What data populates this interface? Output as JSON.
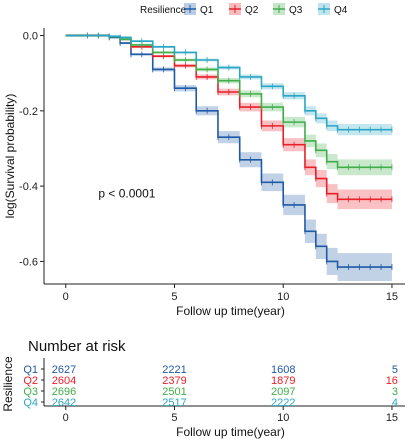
{
  "chart_data": {
    "type": "line",
    "legend": {
      "title": "Resilience",
      "position": "top",
      "items": [
        "Q1",
        "Q2",
        "Q3",
        "Q4"
      ]
    },
    "xlabel": "Follow up time(year)",
    "ylabel": "log(Survival probability)",
    "xlim": [
      -1,
      15.6
    ],
    "ylim": [
      -0.66,
      0.02
    ],
    "xticks": [
      0,
      5,
      10,
      15
    ],
    "yticks": [
      0.0,
      -0.2,
      -0.4,
      -0.6
    ],
    "ytick_labels": [
      "0.0",
      "-0.2",
      "-0.4",
      "-0.6"
    ],
    "annotation": "p < 0.0001",
    "annotation_at": [
      1.5,
      -0.43
    ],
    "grid": false,
    "series": [
      {
        "name": "Q1",
        "color": "#1f5aa6",
        "x": [
          0,
          1,
          2,
          2.5,
          3,
          4,
          5,
          6,
          7,
          8,
          9,
          10,
          11,
          11.5,
          12,
          12.5,
          15
        ],
        "y": [
          0,
          0,
          -0.005,
          -0.02,
          -0.05,
          -0.09,
          -0.14,
          -0.2,
          -0.27,
          -0.33,
          -0.39,
          -0.45,
          -0.52,
          -0.56,
          -0.6,
          -0.615,
          -0.615
        ]
      },
      {
        "name": "Q2",
        "color": "#e8202a",
        "x": [
          0,
          1,
          2,
          2.5,
          3,
          4,
          5,
          6,
          7,
          8,
          9,
          10,
          11,
          11.5,
          12,
          12.5,
          15
        ],
        "y": [
          0,
          0,
          -0.003,
          -0.01,
          -0.03,
          -0.055,
          -0.08,
          -0.11,
          -0.15,
          -0.19,
          -0.24,
          -0.29,
          -0.35,
          -0.38,
          -0.42,
          -0.435,
          -0.435
        ]
      },
      {
        "name": "Q3",
        "color": "#3fae49",
        "x": [
          0,
          1,
          2,
          2.5,
          3,
          4,
          5,
          6,
          7,
          8,
          9,
          10,
          11,
          11.5,
          12,
          12.5,
          15
        ],
        "y": [
          0,
          0,
          -0.003,
          -0.01,
          -0.025,
          -0.045,
          -0.065,
          -0.09,
          -0.12,
          -0.155,
          -0.19,
          -0.23,
          -0.28,
          -0.305,
          -0.335,
          -0.35,
          -0.35
        ]
      },
      {
        "name": "Q4",
        "color": "#2ba6c4",
        "x": [
          0,
          1,
          2,
          2.5,
          3,
          4,
          5,
          6,
          7,
          8,
          9,
          10,
          11,
          11.5,
          12,
          12.5,
          15
        ],
        "y": [
          0,
          0,
          -0.002,
          -0.005,
          -0.015,
          -0.03,
          -0.045,
          -0.065,
          -0.085,
          -0.11,
          -0.135,
          -0.16,
          -0.2,
          -0.22,
          -0.24,
          -0.25,
          -0.25
        ]
      }
    ]
  },
  "risk_table": {
    "title": "Number at risk",
    "ylabel": "Resilience",
    "xlabel": "Follow up time(year)",
    "xticks": [
      0,
      5,
      10,
      15
    ],
    "rows": [
      {
        "label": "Q1",
        "color": "#1f5aa6",
        "values": [
          "2627",
          "2221",
          "1608",
          "5"
        ]
      },
      {
        "label": "Q2",
        "color": "#e8202a",
        "values": [
          "2604",
          "2379",
          "1879",
          "16"
        ]
      },
      {
        "label": "Q3",
        "color": "#3fae49",
        "values": [
          "2696",
          "2501",
          "2097",
          "3"
        ]
      },
      {
        "label": "Q4",
        "color": "#2ba6c4",
        "values": [
          "2642",
          "2517",
          "2222",
          "4"
        ]
      }
    ]
  }
}
